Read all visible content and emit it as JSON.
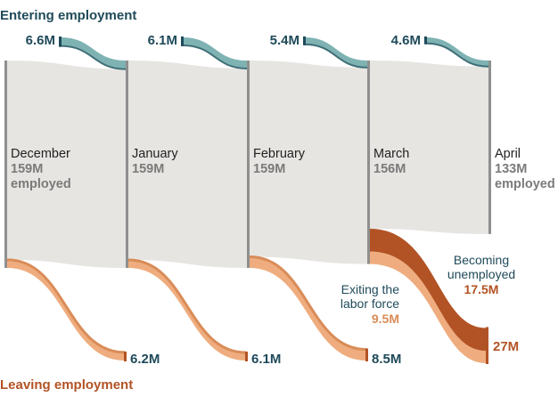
{
  "colors": {
    "employed_flow": "#e6e5e2",
    "month_bar": "#8f8f8f",
    "entering": "#7fb3b3",
    "entering_dark": "#3f6f78",
    "leaving_lf": "#efad7f",
    "leaving_lf_dark": "#d98c58",
    "unemployed": "#b25325",
    "label_dark": "#1f4a5a",
    "label_gray": "#7a7a7a",
    "title_blue": "#1f4a5a",
    "title_orange": "#b25325"
  },
  "chart_data": {
    "type": "sankey",
    "title_top": "Entering employment",
    "title_bottom": "Leaving employment",
    "unit": "M",
    "months": [
      {
        "name": "December",
        "employed": "159M",
        "employed_value": 159,
        "suffix": "employed"
      },
      {
        "name": "January",
        "employed": "159M",
        "employed_value": 159,
        "suffix": ""
      },
      {
        "name": "February",
        "employed": "159M",
        "employed_value": 159,
        "suffix": ""
      },
      {
        "name": "March",
        "employed": "156M",
        "employed_value": 156,
        "suffix": ""
      },
      {
        "name": "April",
        "employed": "133M",
        "employed_value": 133,
        "suffix": "employed"
      }
    ],
    "entering": [
      {
        "label": "6.6M",
        "value": 6.6
      },
      {
        "label": "6.1M",
        "value": 6.1
      },
      {
        "label": "5.4M",
        "value": 5.4
      },
      {
        "label": "4.6M",
        "value": 4.6
      }
    ],
    "leaving": [
      {
        "label": "6.2M",
        "value": 6.2
      },
      {
        "label": "6.1M",
        "value": 6.1
      },
      {
        "label": "8.5M",
        "value": 8.5
      },
      {
        "label": "27M",
        "value": 27
      }
    ],
    "april_breakdown": {
      "unemployed": {
        "lines": [
          "Becoming",
          "unemployed"
        ],
        "value_label": "17.5M",
        "value": 17.5
      },
      "exiting": {
        "lines": [
          "Exiting the",
          "labor force"
        ],
        "value_label": "9.5M",
        "value": 9.5
      }
    }
  }
}
